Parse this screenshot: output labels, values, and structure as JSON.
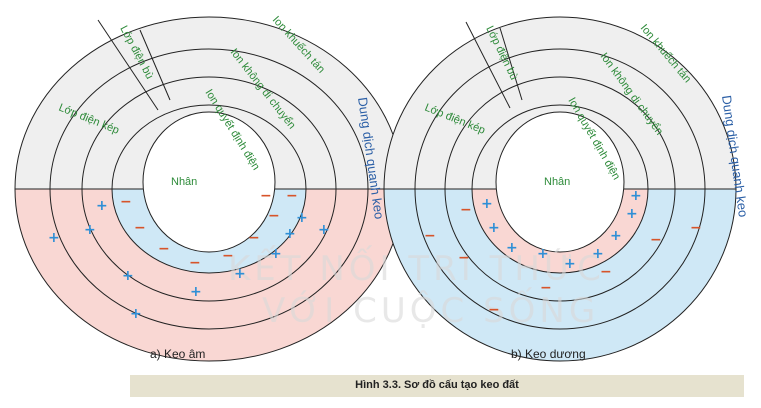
{
  "diagrams": [
    {
      "subtitle": "a) Keo âm",
      "core": "Nhân",
      "layers": {
        "potential": "Ion quyết định điện",
        "fixed": "Ion không di chuyển",
        "diffuse": "Ion khuếch tán",
        "compensating": "Lớp điện bù",
        "double": "Lớp điện kép",
        "solution": "Dung dịch quanh keo"
      },
      "inner_sign": "−",
      "outer_sign": "+"
    },
    {
      "subtitle": "b) Keo dương",
      "core": "Nhân",
      "layers": {
        "potential": "Ion quyết định điện",
        "fixed": "Ion không di chuyển",
        "diffuse": "Ion khuếch tán",
        "compensating": "Lớp điện bù",
        "double": "Lớp điện kép",
        "solution": "Dung dịch quanh keo"
      },
      "inner_sign": "+",
      "outer_sign": "−"
    }
  ],
  "caption": "Hình 3.3. Sơ đồ cấu tạo keo đất",
  "watermark": {
    "line1": "KẾT NỐI TRI THỨC",
    "line2": "VỚI CUỘC SỐNG"
  },
  "colors": {
    "pink": "#f9d7d3",
    "blue": "#cfe8f6",
    "gray": "#efefef",
    "plus": "#2f8fd6",
    "minus": "#d7542a",
    "label_green": "#2e8b3a",
    "label_blue": "#2b5fa6"
  }
}
